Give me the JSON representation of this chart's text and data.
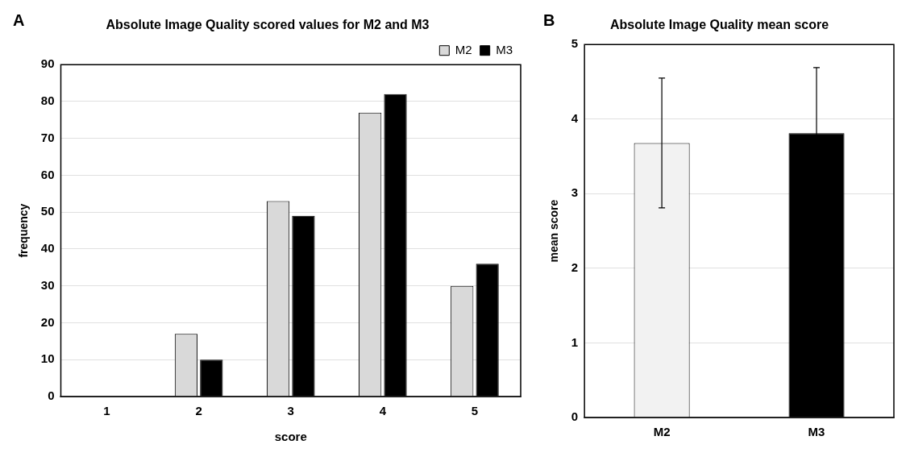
{
  "chart_data": [
    {
      "type": "bar",
      "title": "Absolute Image Quality scored values for M2 and M3",
      "xlabel": "score",
      "ylabel": "frequency",
      "annotations": [
        "A"
      ],
      "categories": [
        "1",
        "2",
        "3",
        "4",
        "5"
      ],
      "series": [
        {
          "name": "M2",
          "color": "#d9d9d9",
          "values": [
            0,
            17,
            53,
            77,
            30
          ]
        },
        {
          "name": "M3",
          "color": "#000000",
          "values": [
            0,
            10,
            49,
            82,
            36
          ]
        }
      ],
      "ylim": [
        0,
        90
      ],
      "yticks": [
        0,
        10,
        20,
        30,
        40,
        50,
        60,
        70,
        80,
        90
      ],
      "grid": "y",
      "legend": "top right"
    },
    {
      "type": "bar",
      "title": "Absolute Image Quality mean score",
      "ylabel": "mean score",
      "annotations": [
        "B"
      ],
      "categories": [
        "M2",
        "M3"
      ],
      "values": [
        3.68,
        3.81
      ],
      "colors": [
        "#f2f2f2",
        "#000000"
      ],
      "errors": [
        0.87,
        0.88
      ],
      "ylim": [
        0,
        5
      ],
      "yticks": [
        0,
        1,
        2,
        3,
        4,
        5
      ],
      "grid": "y"
    }
  ]
}
